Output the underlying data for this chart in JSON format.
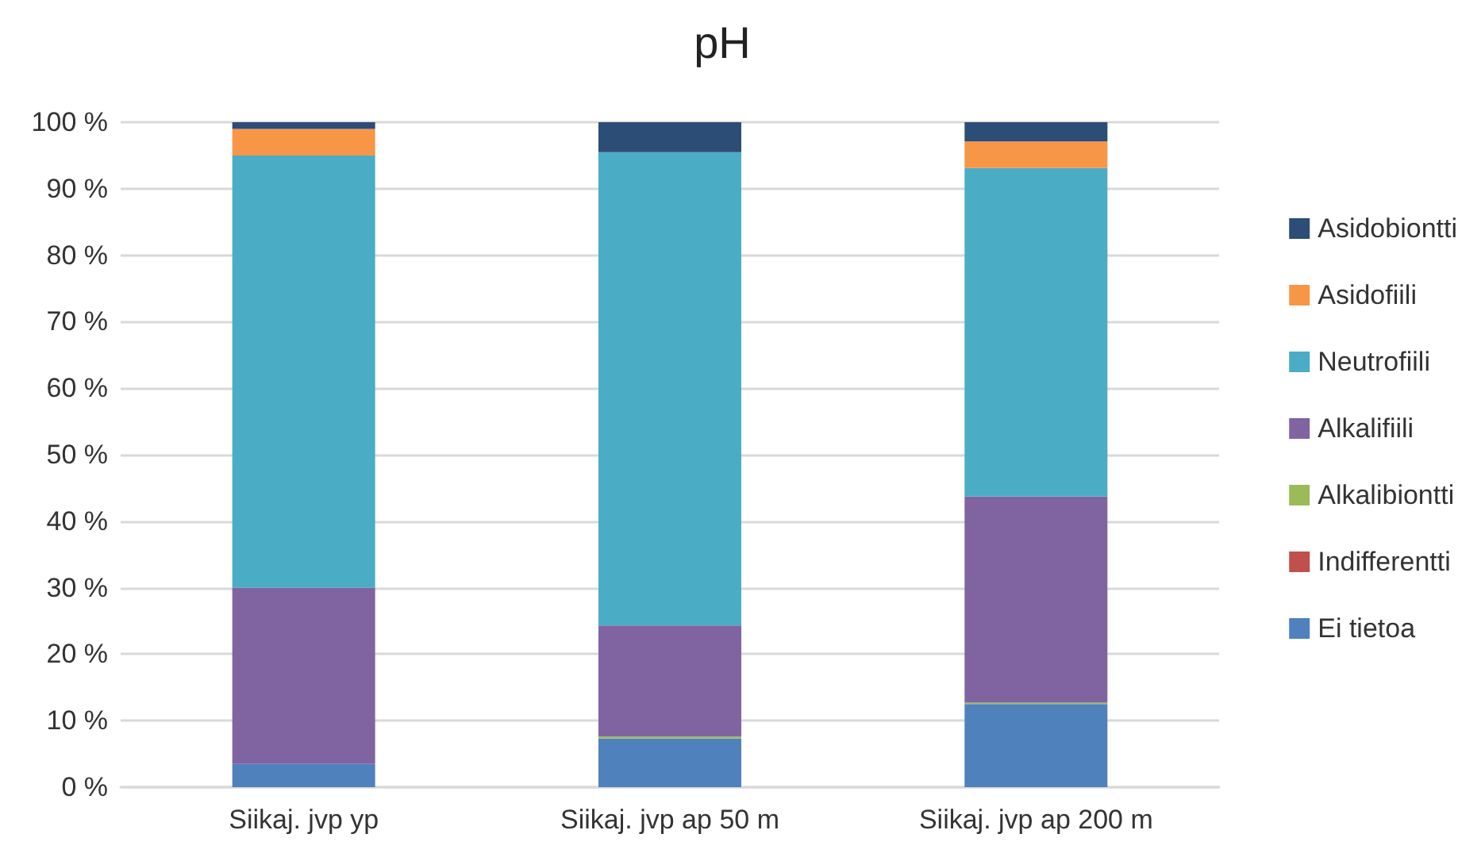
{
  "chart_data": {
    "type": "bar",
    "title": "pH",
    "stacked": true,
    "grid": "y",
    "legend": "right",
    "categories": [
      "Siikaj. jvp yp",
      "Siikaj. jvp ap 50 m",
      "Siikaj. jvp ap 200 m"
    ],
    "ylim": [
      0,
      100
    ],
    "yticks": [
      {
        "value": 0,
        "label": "0 %"
      },
      {
        "value": 10,
        "label": "10 %"
      },
      {
        "value": 20,
        "label": "20 %"
      },
      {
        "value": 30,
        "label": "30 %"
      },
      {
        "value": 40,
        "label": "40 %"
      },
      {
        "value": 50,
        "label": "50 %"
      },
      {
        "value": 60,
        "label": "60 %"
      },
      {
        "value": 70,
        "label": "70 %"
      },
      {
        "value": 80,
        "label": "80 %"
      },
      {
        "value": 90,
        "label": "90 %"
      },
      {
        "value": 100,
        "label": "100 %"
      }
    ],
    "series": [
      {
        "name": "Ei tietoa",
        "color": "#4f81bd",
        "values": [
          3.5,
          7.3,
          12.5
        ]
      },
      {
        "name": "Indifferentti",
        "color": "#c0504d",
        "values": [
          0,
          0,
          0
        ]
      },
      {
        "name": "Alkalibiontti",
        "color": "#9bbb59",
        "values": [
          0,
          0.3,
          0.2
        ]
      },
      {
        "name": "Alkalifiili",
        "color": "#8064a2",
        "values": [
          26.5,
          16.7,
          31
        ]
      },
      {
        "name": "Neutrofiili",
        "color": "#4bacc6",
        "values": [
          65,
          71.2,
          49.4
        ]
      },
      {
        "name": "Asidofiili",
        "color": "#f79646",
        "values": [
          4,
          0,
          4
        ]
      },
      {
        "name": "Asidobiontti",
        "color": "#2c4d75",
        "values": [
          1,
          4.5,
          2.9
        ]
      }
    ]
  }
}
